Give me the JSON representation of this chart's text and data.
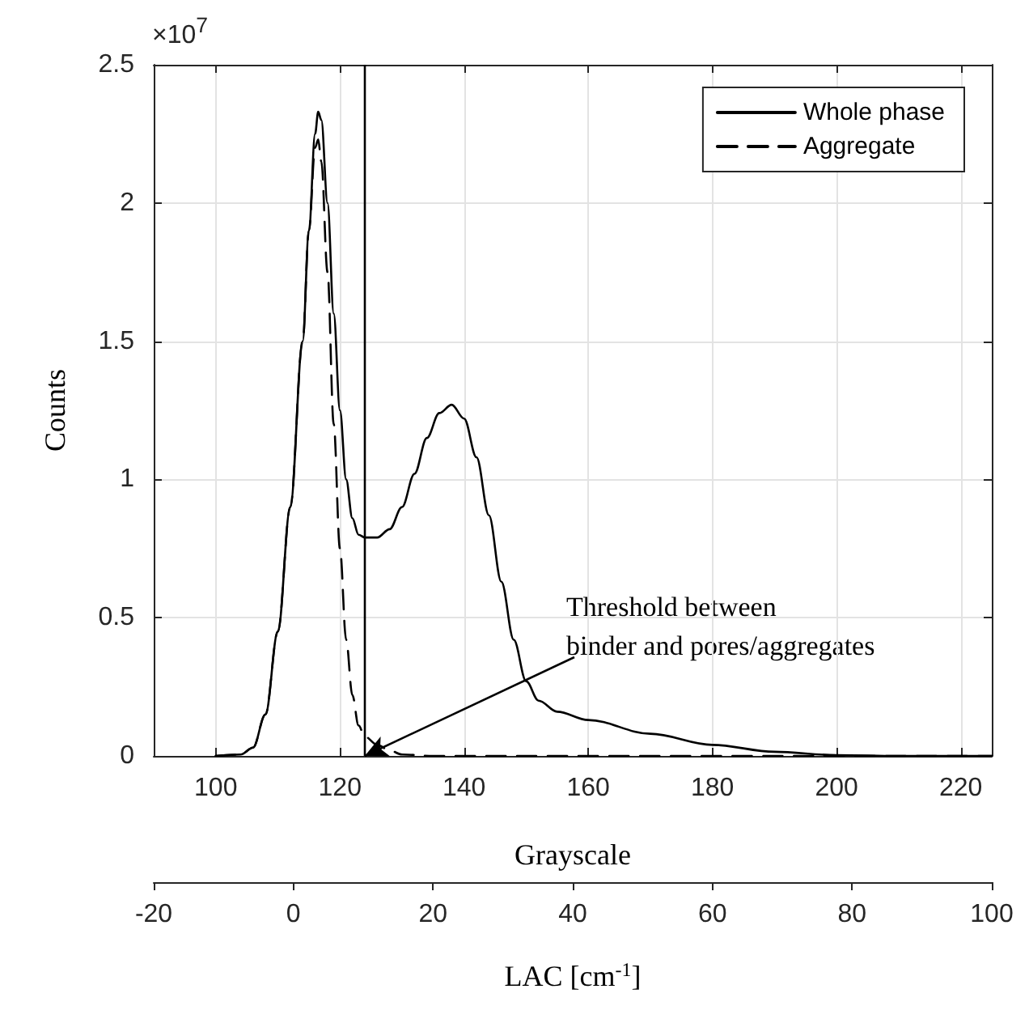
{
  "chart_data": {
    "type": "line",
    "xlabel": "Grayscale",
    "ylabel": "Counts",
    "x2label": "LAC [cm$^{-1}$]",
    "xlim": [
      90,
      225
    ],
    "xticks": [
      100,
      120,
      140,
      160,
      180,
      200,
      220
    ],
    "x2lim": [
      -20,
      100
    ],
    "x2ticks": [
      -20,
      0,
      20,
      40,
      60,
      80,
      100
    ],
    "ylim": [
      0,
      2.5
    ],
    "yticks": [
      0,
      0.5,
      1,
      1.5,
      2,
      2.5
    ],
    "grid": true,
    "legend": "top right",
    "series": [
      {
        "name": "Whole phase",
        "color": "#000000",
        "line_style": "solid",
        "x": [
          100,
          104,
          106,
          108,
          110,
          112,
          114,
          115,
          116,
          116.5,
          117,
          118,
          119,
          120,
          121,
          122,
          123,
          124,
          126,
          128,
          130,
          132,
          134,
          136,
          138,
          140,
          142,
          144,
          146,
          148,
          150,
          152,
          155,
          160,
          170,
          180,
          190,
          200,
          210,
          225
        ],
        "values": [
          0,
          0.005,
          0.03,
          0.15,
          0.45,
          0.9,
          1.5,
          1.9,
          2.25,
          2.33,
          2.3,
          2,
          1.6,
          1.25,
          1,
          0.86,
          0.8,
          0.79,
          0.79,
          0.82,
          0.9,
          1.02,
          1.15,
          1.24,
          1.27,
          1.22,
          1.08,
          0.87,
          0.63,
          0.42,
          0.27,
          0.2,
          0.16,
          0.13,
          0.08,
          0.04,
          0.015,
          0.003,
          0,
          0
        ]
      },
      {
        "name": "Aggregate",
        "color": "#000000",
        "line_style": "dashed",
        "x": [
          100,
          104,
          106,
          108,
          110,
          112,
          114,
          115,
          116,
          116.5,
          117,
          118,
          119,
          120,
          121,
          122,
          123,
          124,
          126,
          128,
          130,
          135,
          225
        ],
        "values": [
          0,
          0.005,
          0.03,
          0.15,
          0.45,
          0.9,
          1.5,
          1.9,
          2.2,
          2.23,
          2.15,
          1.75,
          1.2,
          0.75,
          0.42,
          0.22,
          0.11,
          0.07,
          0.04,
          0.02,
          0.005,
          0,
          0
        ]
      }
    ],
    "ref_lines": [
      {
        "axis": "x",
        "value": 124,
        "color": "#000000",
        "line_style": "solid"
      }
    ],
    "annotations": [
      "×10$^{7}$",
      {
        "text": "Threshold between\nbinder and pores/aggregates",
        "x": 124,
        "y": 0
      }
    ]
  }
}
